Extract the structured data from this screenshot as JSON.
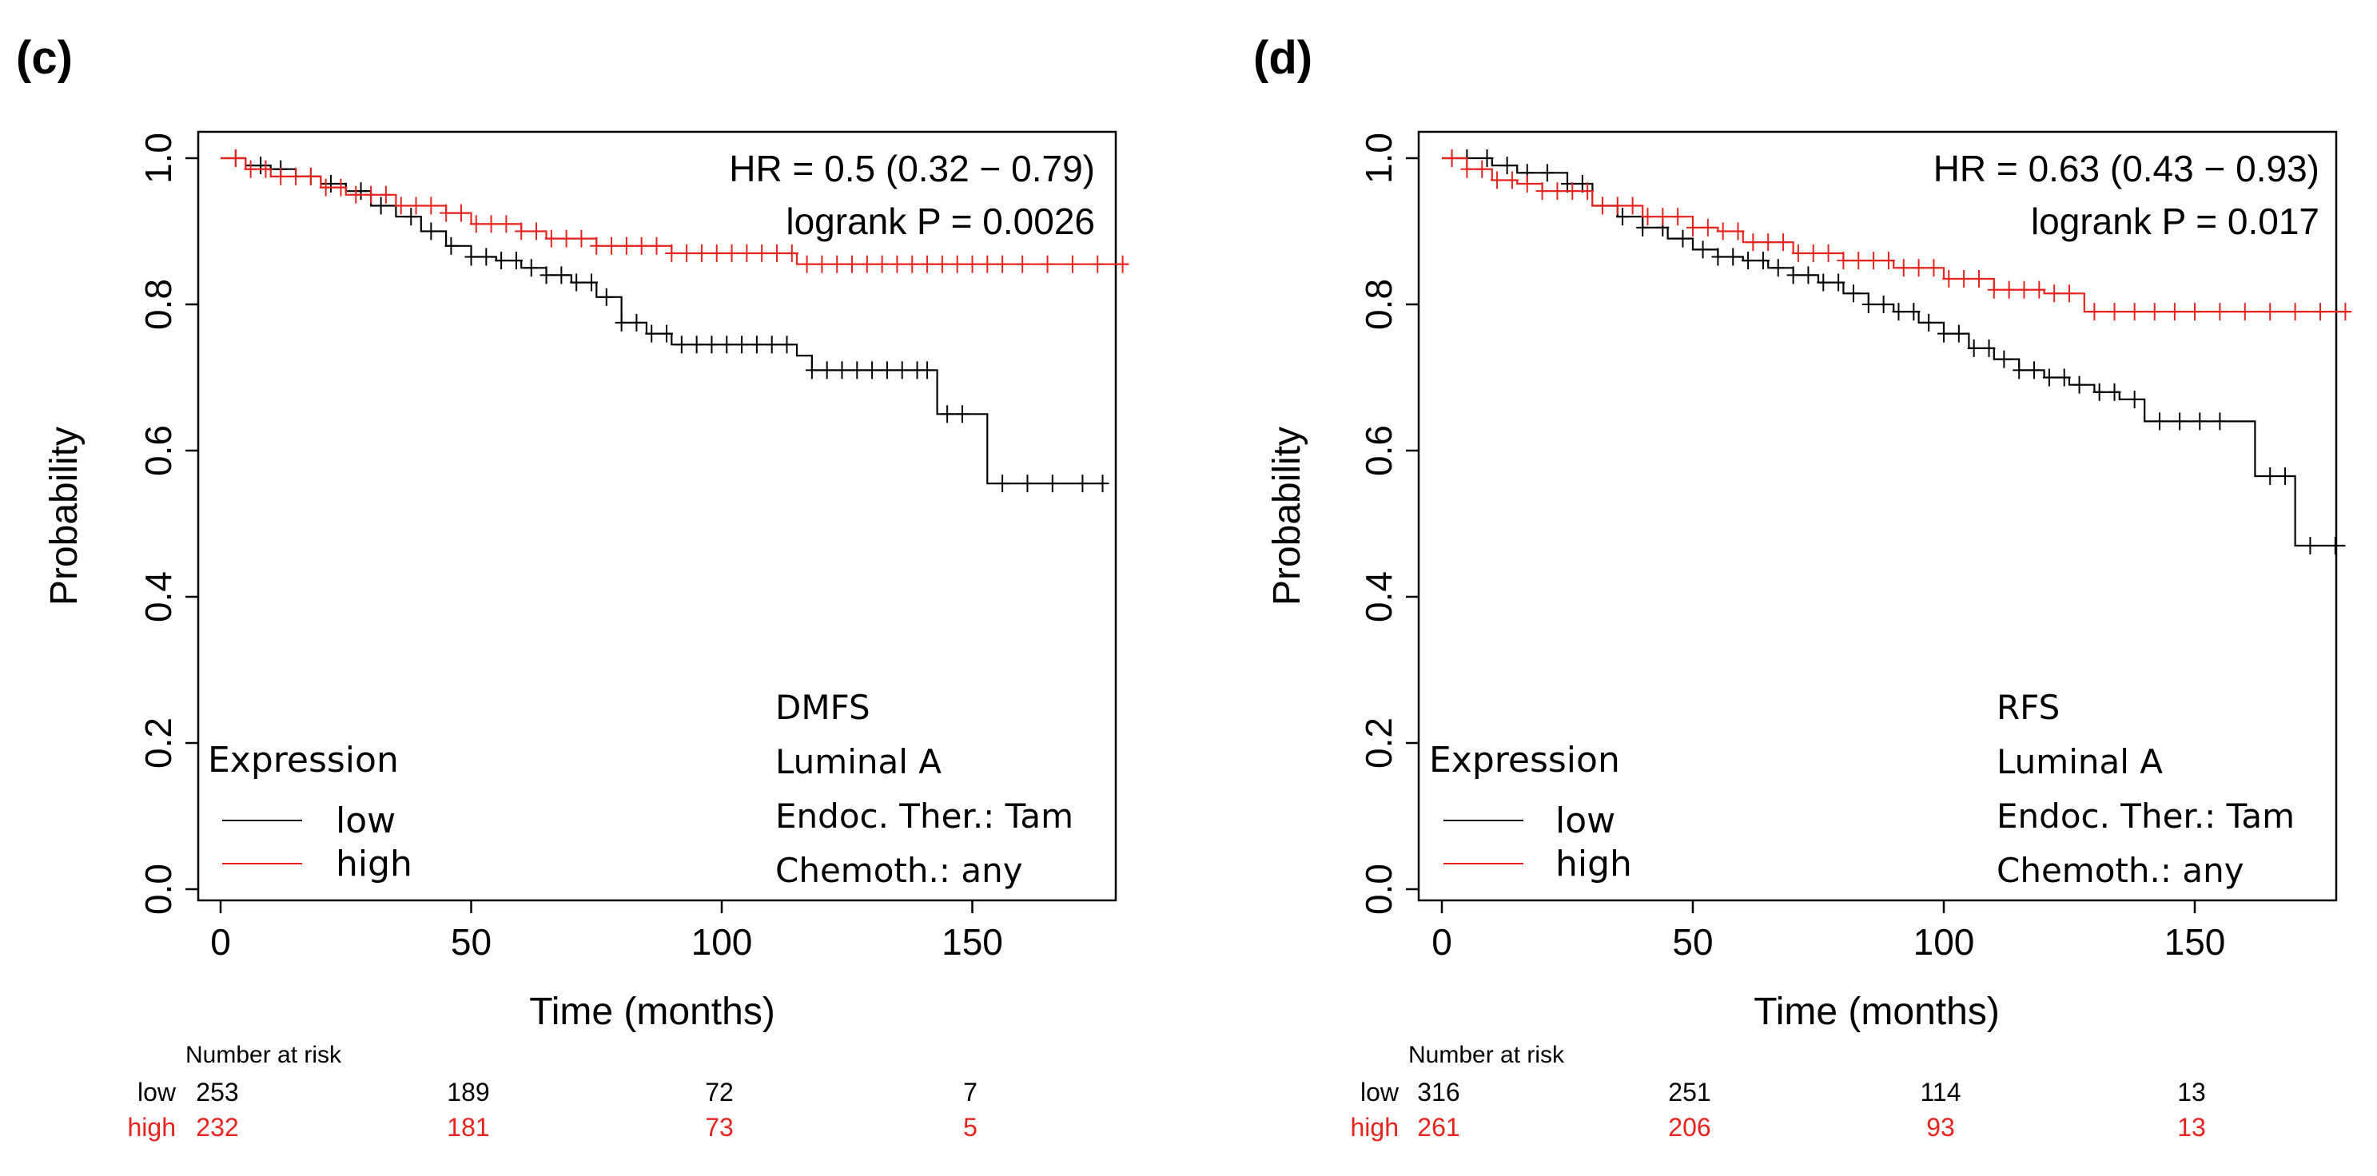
{
  "chart_data": [
    {
      "type": "line",
      "subtype": "kaplan-meier",
      "panel_label": "(c)",
      "xlabel": "Time (months)",
      "ylabel": "Probability",
      "xlim": [
        0,
        180
      ],
      "ylim": [
        0,
        1
      ],
      "xticks": [
        "0",
        "50",
        "100",
        "150"
      ],
      "yticks": [
        "0.0",
        "0.2",
        "0.4",
        "0.6",
        "0.8",
        "1.0"
      ],
      "stats": [
        "HR = 0.5 (0.32 − 0.79)",
        "logrank P = 0.0026"
      ],
      "annotations": [
        "DMFS",
        "Luminal A",
        "Endoc. Ther.: Tam",
        "Chemoth.: any"
      ],
      "legend_title": "Expression",
      "series": [
        {
          "name": "low",
          "color": "#000000",
          "steps": [
            [
              0,
              1.0
            ],
            [
              5,
              0.99
            ],
            [
              10,
              0.985
            ],
            [
              15,
              0.975
            ],
            [
              20,
              0.965
            ],
            [
              25,
              0.955
            ],
            [
              30,
              0.935
            ],
            [
              35,
              0.92
            ],
            [
              40,
              0.9
            ],
            [
              45,
              0.88
            ],
            [
              50,
              0.865
            ],
            [
              55,
              0.86
            ],
            [
              60,
              0.85
            ],
            [
              65,
              0.84
            ],
            [
              70,
              0.83
            ],
            [
              75,
              0.81
            ],
            [
              80,
              0.775
            ],
            [
              85,
              0.76
            ],
            [
              90,
              0.745
            ],
            [
              115,
              0.73
            ],
            [
              118,
              0.71
            ],
            [
              143,
              0.65
            ],
            [
              153,
              0.555
            ],
            [
              176,
              0.555
            ]
          ],
          "censor": [
            3,
            8,
            12,
            18,
            22,
            28,
            32,
            38,
            42,
            46,
            50,
            53,
            56,
            59,
            62,
            65,
            68,
            71,
            74,
            77,
            80,
            83,
            86,
            89,
            92,
            95,
            98,
            101,
            104,
            107,
            110,
            113,
            118,
            121,
            124,
            127,
            130,
            133,
            136,
            139,
            141,
            145,
            148,
            156,
            161,
            166,
            172,
            176
          ]
        },
        {
          "name": "high",
          "color": "#e8231e",
          "steps": [
            [
              0,
              1.0
            ],
            [
              5,
              0.985
            ],
            [
              10,
              0.975
            ],
            [
              20,
              0.96
            ],
            [
              25,
              0.95
            ],
            [
              35,
              0.935
            ],
            [
              45,
              0.925
            ],
            [
              50,
              0.91
            ],
            [
              60,
              0.9
            ],
            [
              65,
              0.89
            ],
            [
              75,
              0.88
            ],
            [
              90,
              0.87
            ],
            [
              115,
              0.855
            ],
            [
              181,
              0.855
            ]
          ],
          "censor": [
            3,
            6,
            9,
            12,
            15,
            18,
            21,
            24,
            27,
            30,
            33,
            36,
            39,
            42,
            45,
            48,
            51,
            54,
            57,
            60,
            63,
            66,
            69,
            72,
            75,
            78,
            81,
            84,
            87,
            90,
            93,
            96,
            99,
            102,
            105,
            108,
            111,
            114,
            117,
            120,
            123,
            126,
            129,
            132,
            135,
            138,
            141,
            144,
            147,
            150,
            153,
            156,
            160,
            165,
            170,
            175,
            180
          ]
        }
      ],
      "risk_table": {
        "header": "Number at risk",
        "rows": [
          {
            "label": "low",
            "color": "#000000",
            "values": [
              "253",
              "189",
              "72",
              "7"
            ]
          },
          {
            "label": "high",
            "color": "#e8231e",
            "values": [
              "232",
              "181",
              "73",
              "5"
            ]
          }
        ]
      }
    },
    {
      "type": "line",
      "subtype": "kaplan-meier",
      "panel_label": "(d)",
      "xlabel": "Time (months)",
      "ylabel": "Probability",
      "xlim": [
        0,
        180
      ],
      "ylim": [
        0,
        1
      ],
      "xticks": [
        "0",
        "50",
        "100",
        "150"
      ],
      "yticks": [
        "0.0",
        "0.2",
        "0.4",
        "0.6",
        "0.8",
        "1.0"
      ],
      "stats": [
        "HR = 0.63 (0.43 − 0.93)",
        "logrank P = 0.017"
      ],
      "annotations": [
        "RFS",
        "Luminal A",
        "Endoc. Ther.: Tam",
        "Chemoth.: any"
      ],
      "legend_title": "Expression",
      "series": [
        {
          "name": "low",
          "color": "#000000",
          "steps": [
            [
              0,
              1.0
            ],
            [
              10,
              0.99
            ],
            [
              15,
              0.98
            ],
            [
              25,
              0.965
            ],
            [
              30,
              0.935
            ],
            [
              35,
              0.92
            ],
            [
              40,
              0.905
            ],
            [
              45,
              0.89
            ],
            [
              50,
              0.875
            ],
            [
              55,
              0.865
            ],
            [
              60,
              0.86
            ],
            [
              65,
              0.85
            ],
            [
              70,
              0.84
            ],
            [
              75,
              0.83
            ],
            [
              80,
              0.815
            ],
            [
              85,
              0.8
            ],
            [
              90,
              0.79
            ],
            [
              95,
              0.775
            ],
            [
              100,
              0.76
            ],
            [
              105,
              0.74
            ],
            [
              110,
              0.725
            ],
            [
              115,
              0.71
            ],
            [
              120,
              0.7
            ],
            [
              125,
              0.69
            ],
            [
              130,
              0.68
            ],
            [
              135,
              0.67
            ],
            [
              140,
              0.64
            ],
            [
              162,
              0.565
            ],
            [
              168,
              0.565
            ],
            [
              170,
              0.47
            ],
            [
              180,
              0.47
            ]
          ],
          "censor": [
            2,
            5,
            9,
            13,
            17,
            21,
            25,
            28,
            32,
            36,
            40,
            44,
            48,
            52,
            55,
            58,
            61,
            64,
            67,
            70,
            73,
            76,
            79,
            82,
            85,
            88,
            91,
            94,
            97,
            100,
            103,
            106,
            109,
            112,
            115,
            118,
            121,
            124,
            127,
            131,
            134,
            138,
            143,
            147,
            151,
            155,
            165,
            168,
            173,
            178
          ]
        },
        {
          "name": "high",
          "color": "#e8231e",
          "steps": [
            [
              0,
              1.0
            ],
            [
              5,
              0.985
            ],
            [
              10,
              0.97
            ],
            [
              15,
              0.965
            ],
            [
              20,
              0.955
            ],
            [
              30,
              0.935
            ],
            [
              40,
              0.92
            ],
            [
              50,
              0.905
            ],
            [
              55,
              0.9
            ],
            [
              60,
              0.885
            ],
            [
              70,
              0.87
            ],
            [
              80,
              0.86
            ],
            [
              90,
              0.85
            ],
            [
              100,
              0.835
            ],
            [
              110,
              0.82
            ],
            [
              120,
              0.815
            ],
            [
              128,
              0.79
            ],
            [
              181,
              0.79
            ]
          ],
          "censor": [
            2,
            5,
            8,
            11,
            14,
            17,
            20,
            23,
            26,
            29,
            32,
            35,
            38,
            41,
            44,
            47,
            50,
            53,
            56,
            59,
            62,
            65,
            68,
            71,
            74,
            77,
            80,
            83,
            86,
            89,
            92,
            95,
            98,
            101,
            104,
            107,
            110,
            113,
            116,
            119,
            122,
            125,
            130,
            134,
            138,
            142,
            146,
            150,
            155,
            160,
            165,
            170,
            175,
            180
          ]
        }
      ],
      "risk_table": {
        "header": "Number at risk",
        "rows": [
          {
            "label": "low",
            "color": "#000000",
            "values": [
              "316",
              "251",
              "114",
              "13"
            ]
          },
          {
            "label": "high",
            "color": "#e8231e",
            "values": [
              "261",
              "206",
              "93",
              "13"
            ]
          }
        ]
      }
    }
  ]
}
